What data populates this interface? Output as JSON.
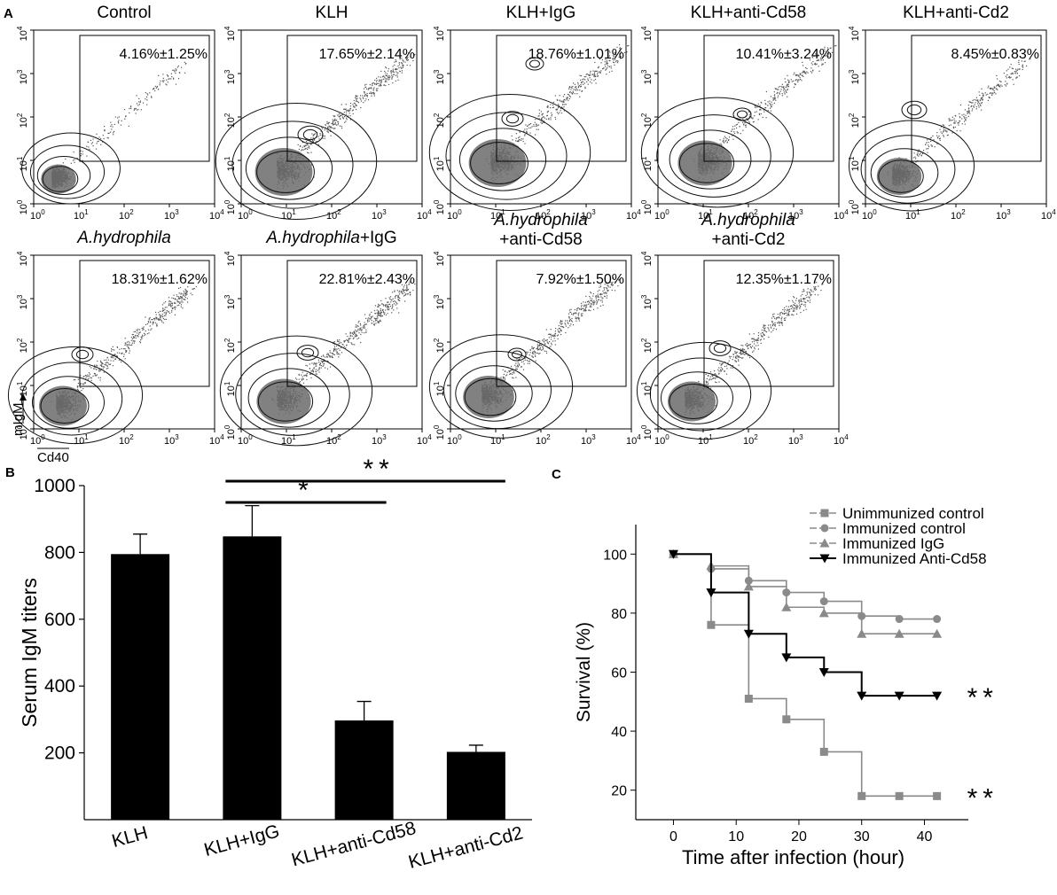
{
  "figure": {
    "panel_labels": [
      "A",
      "B",
      "C"
    ],
    "panel_a_scatter_color": "#555555"
  },
  "chart_data": [
    {
      "type": "scatter",
      "panel": "A",
      "description_type": "flow-cytometry contour plots",
      "xlabel": "Cd40",
      "ylabel": "mIgM",
      "axis_ticks": [
        "10^0",
        "10^1",
        "10^2",
        "10^3",
        "10^4"
      ],
      "tick_exponents": [
        "0",
        "1",
        "2",
        "3",
        "4"
      ],
      "plots": [
        {
          "title": "Control",
          "gate_value": "4.16%±1.25%",
          "italic": false
        },
        {
          "title": "KLH",
          "gate_value": "17.65%±2.14%",
          "italic": false
        },
        {
          "title": "KLH+IgG",
          "gate_value": "18.76%±1.01%",
          "italic": false
        },
        {
          "title": "KLH+anti-Cd58",
          "gate_value": "10.41%±3.24%",
          "italic": false
        },
        {
          "title": "KLH+anti-Cd2",
          "gate_value": "8.45%±0.83%",
          "italic": false
        },
        {
          "title": "A.hydrophila",
          "gate_value": "18.31%±1.62%",
          "italic": true
        },
        {
          "title": "A.hydrophila+IgG",
          "title_italic_part": "A.hydrophila",
          "title_plain_part": "+IgG",
          "gate_value": "22.81%±2.43%",
          "italic": "partial"
        },
        {
          "title_line1": "A.hydrophila",
          "title_line2": "+anti-Cd58",
          "gate_value": "7.92%±1.50%",
          "italic": "partial"
        },
        {
          "title_line1": "A.hydrophila",
          "title_line2": "+anti-Cd2",
          "gate_value": "12.35%±1.17%",
          "italic": "partial"
        }
      ]
    },
    {
      "type": "bar",
      "panel": "B",
      "categories": [
        "KLH",
        "KLH+IgG",
        "KLH+anti-Cd58",
        "KLH+anti-Cd2"
      ],
      "values": [
        795,
        848,
        297,
        203
      ],
      "errors": [
        60,
        92,
        57,
        20
      ],
      "ylabel": "Serum IgM titers",
      "ylim": [
        0,
        1000
      ],
      "yticks": [
        "200",
        "400",
        "600",
        "800",
        "1000"
      ],
      "significance": [
        {
          "from": "KLH+IgG",
          "to": "KLH+anti-Cd58",
          "label": "*"
        },
        {
          "from": "KLH+IgG",
          "to": "KLH+anti-Cd2",
          "label": "**"
        }
      ]
    },
    {
      "type": "line",
      "panel": "C",
      "xlabel": "Time after infection (hour)",
      "ylabel": "Survival (%)",
      "xlim": [
        -6,
        47
      ],
      "ylim": [
        10,
        110
      ],
      "xticks": [
        "0",
        "10",
        "20",
        "30",
        "40"
      ],
      "yticks": [
        "20",
        "40",
        "60",
        "80",
        "100"
      ],
      "series": [
        {
          "name": "Unimmunized  control",
          "marker": "square",
          "color": "#8a8a8a",
          "x": [
            0,
            6,
            12,
            18,
            24,
            30,
            36,
            42
          ],
          "y": [
            100,
            76,
            51,
            44,
            33,
            18,
            18,
            18
          ],
          "significance": "**"
        },
        {
          "name": "Immunized  control",
          "marker": "circle",
          "color": "#8a8a8a",
          "x": [
            0,
            6,
            12,
            18,
            24,
            30,
            36,
            42
          ],
          "y": [
            100,
            95,
            91,
            87,
            84,
            79,
            78,
            78
          ]
        },
        {
          "name": "Immunized  IgG",
          "marker": "triangle-up",
          "color": "#8a8a8a",
          "x": [
            0,
            6,
            12,
            18,
            24,
            30,
            36,
            42
          ],
          "y": [
            100,
            96,
            89,
            82,
            80,
            73,
            73,
            73
          ]
        },
        {
          "name": "Immunized  Anti-Cd58",
          "marker": "triangle-down",
          "color": "#000000",
          "x": [
            0,
            6,
            12,
            18,
            24,
            30,
            36,
            42
          ],
          "y": [
            100,
            87,
            73,
            65,
            60,
            52,
            52,
            52
          ],
          "significance": "**"
        }
      ]
    }
  ]
}
